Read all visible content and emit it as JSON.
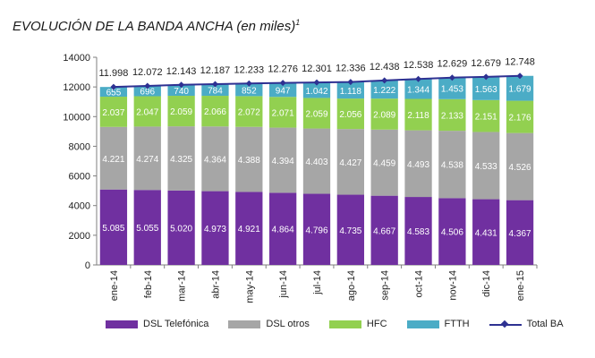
{
  "title_main": "EVOLUCIÓN DE LA BANDA ANCHA",
  "title_sub": "(en miles)",
  "title_sup": "1",
  "chart_data": {
    "type": "bar",
    "stacked": true,
    "categories": [
      "ene-14",
      "feb-14",
      "mar-14",
      "abr-14",
      "may-14",
      "jun-14",
      "jul-14",
      "ago-14",
      "sep-14",
      "oct-14",
      "nov-14",
      "dic-14",
      "ene-15"
    ],
    "ylim": [
      0,
      14000
    ],
    "yticks": [
      "0",
      "2000",
      "4000",
      "6000",
      "8000",
      "10000",
      "12000",
      "14000"
    ],
    "grid": false,
    "legend_position": "bottom",
    "series": [
      {
        "name": "DSL Telefónica",
        "color": "#7030a0",
        "values": [
          5085,
          5055,
          5020,
          4973,
          4921,
          4864,
          4796,
          4735,
          4667,
          4583,
          4506,
          4431,
          4367
        ],
        "labels": [
          "5.085",
          "5.055",
          "5.020",
          "4.973",
          "4.921",
          "4.864",
          "4.796",
          "4.735",
          "4.667",
          "4.583",
          "4.506",
          "4.431",
          "4.367"
        ]
      },
      {
        "name": "DSL otros",
        "color": "#a6a6a6",
        "values": [
          4221,
          4274,
          4325,
          4364,
          4388,
          4394,
          4403,
          4427,
          4459,
          4493,
          4538,
          4533,
          4526
        ],
        "labels": [
          "4.221",
          "4.274",
          "4.325",
          "4.364",
          "4.388",
          "4.394",
          "4.403",
          "4.427",
          "4.459",
          "4.493",
          "4.538",
          "4.533",
          "4.526"
        ]
      },
      {
        "name": "HFC",
        "color": "#92d050",
        "values": [
          2037,
          2047,
          2059,
          2066,
          2072,
          2071,
          2059,
          2056,
          2089,
          2118,
          2133,
          2151,
          2176
        ],
        "labels": [
          "2.037",
          "2.047",
          "2.059",
          "2.066",
          "2.072",
          "2.071",
          "2.059",
          "2.056",
          "2.089",
          "2.118",
          "2.133",
          "2.151",
          "2.176"
        ]
      },
      {
        "name": "FTTH",
        "color": "#4bacc6",
        "values": [
          655,
          696,
          740,
          784,
          852,
          947,
          1042,
          1118,
          1222,
          1344,
          1453,
          1563,
          1679
        ],
        "labels": [
          "655",
          "696",
          "740",
          "784",
          "852",
          "947",
          "1.042",
          "1.118",
          "1.222",
          "1.344",
          "1.453",
          "1.563",
          "1.679"
        ]
      }
    ],
    "line": {
      "name": "Total BA",
      "color": "#2e3192",
      "values": [
        11998,
        12072,
        12143,
        12187,
        12233,
        12276,
        12301,
        12336,
        12438,
        12538,
        12629,
        12679,
        12748
      ],
      "labels": [
        "11.998",
        "12.072",
        "12.143",
        "12.187",
        "12.233",
        "12.276",
        "12.301",
        "12.336",
        "12.438",
        "12.538",
        "12.629",
        "12.679",
        "12.748"
      ]
    }
  }
}
